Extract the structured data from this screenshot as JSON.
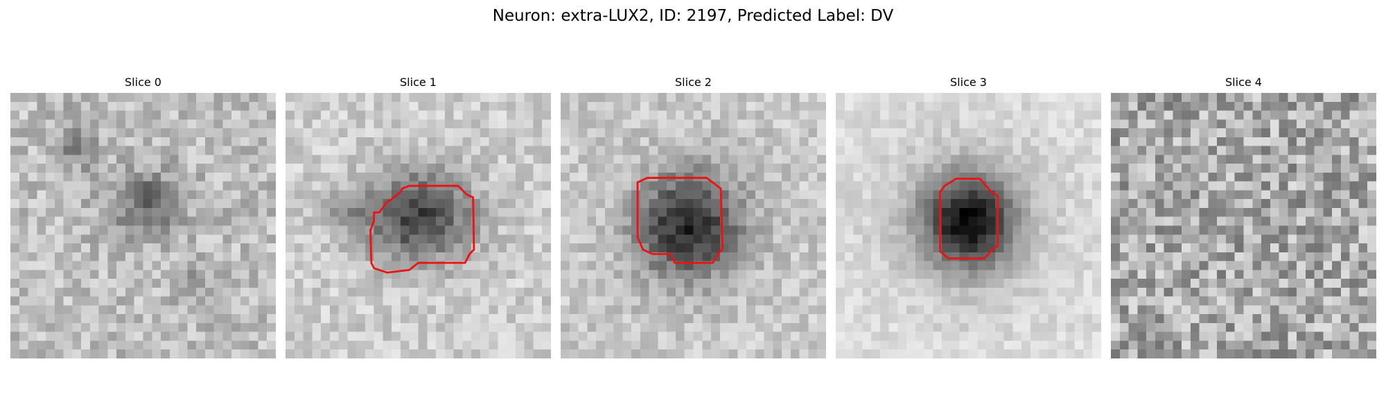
{
  "figure": {
    "title": "Neuron: extra-LUX2, ID: 2197, Predicted Label: DV"
  },
  "panels": [
    {
      "title": "Slice 0"
    },
    {
      "title": "Slice 1"
    },
    {
      "title": "Slice 2"
    },
    {
      "title": "Slice 3"
    },
    {
      "title": "Slice 4"
    }
  ],
  "colors": {
    "contour": "#ee1111",
    "colormap": "grayscale"
  }
}
